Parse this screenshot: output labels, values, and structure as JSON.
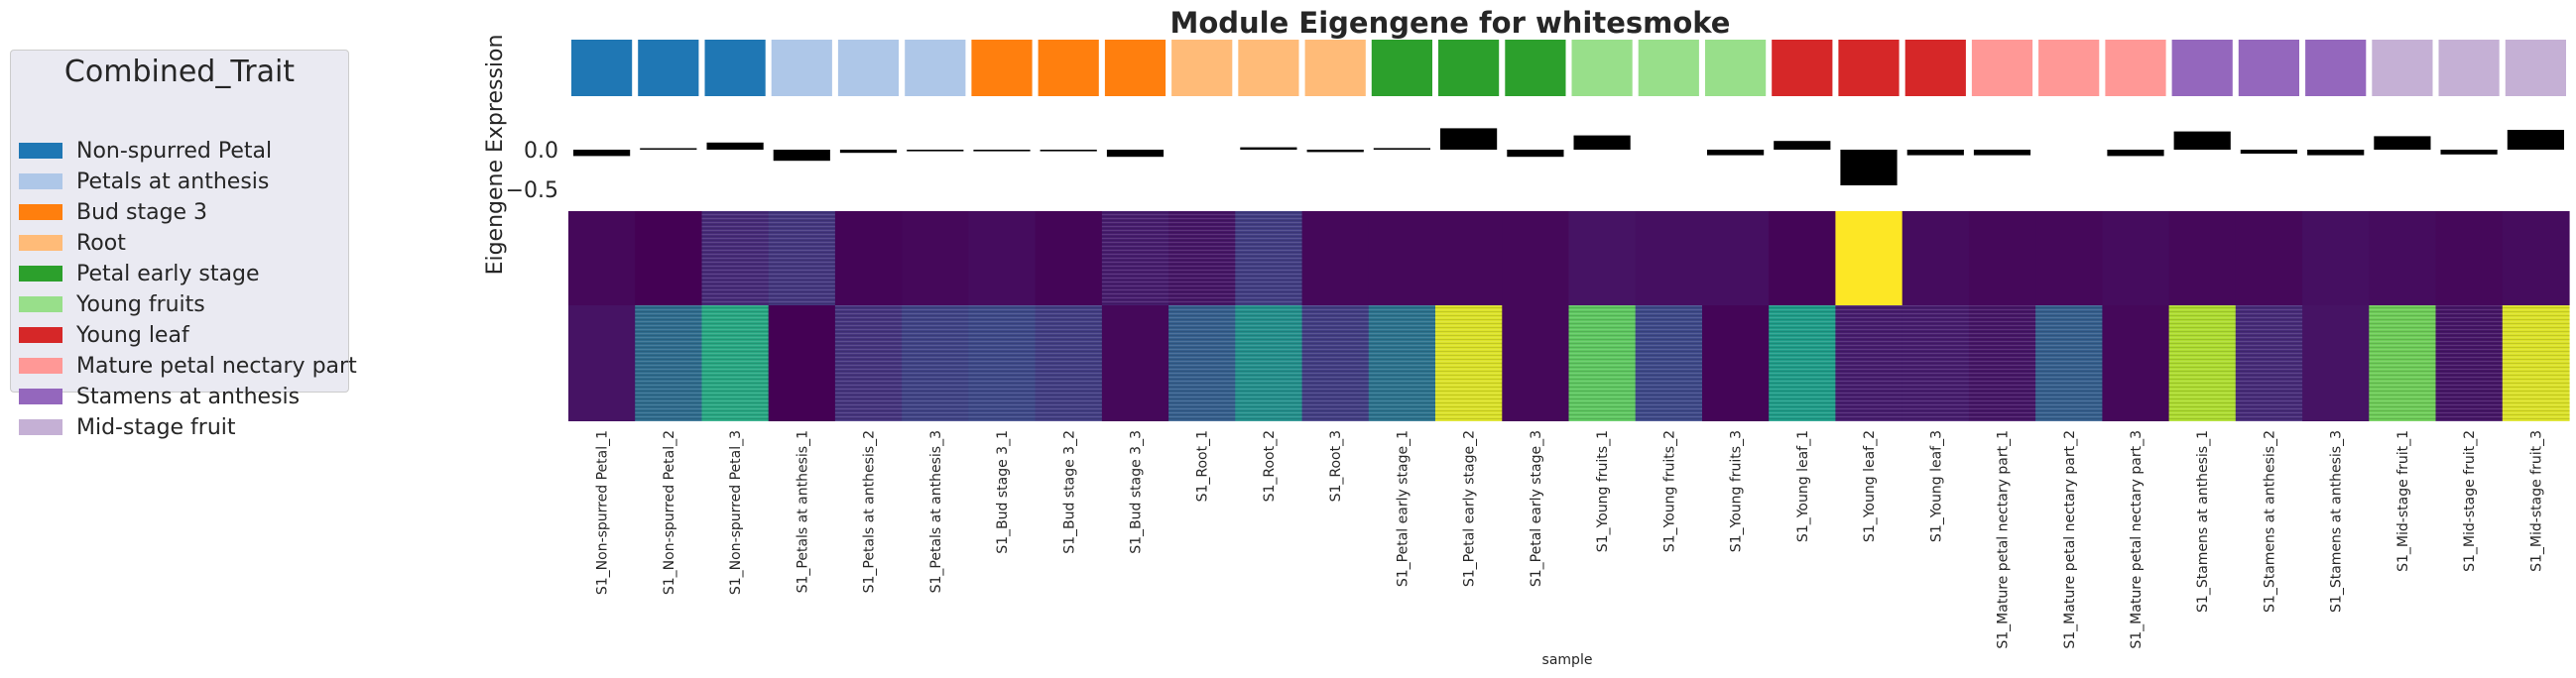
{
  "chart_data": {
    "type": "heatmap",
    "title": "Module Eigengene for whitesmoke",
    "ylabel": "Eigengene Expression",
    "xlabel": "sample",
    "y_ticks": [
      "0.0",
      "−0.5"
    ],
    "ylim": [
      -0.6,
      0.35
    ],
    "legend": {
      "title": "Combined_Trait",
      "placement": "left",
      "items": [
        {
          "label": "Non-spurred Petal",
          "color": "#1f77b4"
        },
        {
          "label": "Petals at anthesis",
          "color": "#aec7e8"
        },
        {
          "label": "Bud stage 3",
          "color": "#ff7f0e"
        },
        {
          "label": "Root",
          "color": "#ffbb78"
        },
        {
          "label": "Petal early stage",
          "color": "#2ca02c"
        },
        {
          "label": "Young fruits",
          "color": "#98df8a"
        },
        {
          "label": "Young leaf",
          "color": "#d62728"
        },
        {
          "label": "Mature petal nectary part",
          "color": "#ff9896"
        },
        {
          "label": "Stamens at anthesis",
          "color": "#9467bd"
        },
        {
          "label": "Mid-stage fruit",
          "color": "#c5b0d5"
        }
      ]
    },
    "samples": [
      "S1_Non-spurred Petal_1",
      "S1_Non-spurred Petal_2",
      "S1_Non-spurred Petal_3",
      "S1_Petals at anthesis_1",
      "S1_Petals at anthesis_2",
      "S1_Petals at anthesis_3",
      "S1_Bud stage 3_1",
      "S1_Bud stage 3_2",
      "S1_Bud stage 3_3",
      "S1_Root_1",
      "S1_Root_2",
      "S1_Root_3",
      "S1_Petal early stage_1",
      "S1_Petal early stage_2",
      "S1_Petal early stage_3",
      "S1_Young fruits_1",
      "S1_Young fruits_2",
      "S1_Young fruits_3",
      "S1_Young leaf_1",
      "S1_Young leaf_2",
      "S1_Young leaf_3",
      "S1_Mature petal nectary part_1",
      "S1_Mature petal nectary part_2",
      "S1_Mature petal nectary part_3",
      "S1_Stamens at anthesis_1",
      "S1_Stamens at anthesis_2",
      "S1_Stamens at anthesis_3",
      "S1_Mid-stage fruit_1",
      "S1_Mid-stage fruit_2",
      "S1_Mid-stage fruit_3"
    ],
    "trait_index": [
      0,
      0,
      0,
      1,
      1,
      1,
      2,
      2,
      2,
      3,
      3,
      3,
      4,
      4,
      4,
      5,
      5,
      5,
      6,
      6,
      6,
      7,
      7,
      7,
      8,
      8,
      8,
      9,
      9,
      9
    ],
    "eigengene": [
      -0.08,
      0.01,
      0.09,
      -0.14,
      -0.04,
      -0.02,
      -0.02,
      -0.02,
      -0.09,
      0.0,
      0.03,
      -0.03,
      0.02,
      0.27,
      -0.09,
      0.18,
      0.0,
      -0.07,
      0.11,
      -0.45,
      -0.07,
      -0.07,
      0.0,
      -0.08,
      0.23,
      -0.05,
      -0.07,
      0.17,
      -0.06,
      0.25
    ],
    "heatmap_block_top": [
      0.02,
      0.0,
      0.12,
      0.16,
      0.01,
      0.02,
      0.03,
      0.01,
      0.08,
      0.06,
      0.18,
      0.02,
      0.02,
      0.02,
      0.02,
      0.05,
      0.04,
      0.04,
      0.01,
      1.0,
      0.03,
      0.02,
      0.02,
      0.03,
      0.02,
      0.02,
      0.04,
      0.03,
      0.02,
      0.03
    ],
    "heatmap_block_bottom": [
      0.05,
      0.35,
      0.6,
      0.0,
      0.15,
      0.2,
      0.22,
      0.18,
      0.02,
      0.3,
      0.5,
      0.18,
      0.38,
      0.95,
      0.02,
      0.75,
      0.22,
      0.01,
      0.55,
      0.08,
      0.08,
      0.06,
      0.3,
      0.02,
      0.88,
      0.12,
      0.05,
      0.78,
      0.06,
      0.95
    ]
  }
}
